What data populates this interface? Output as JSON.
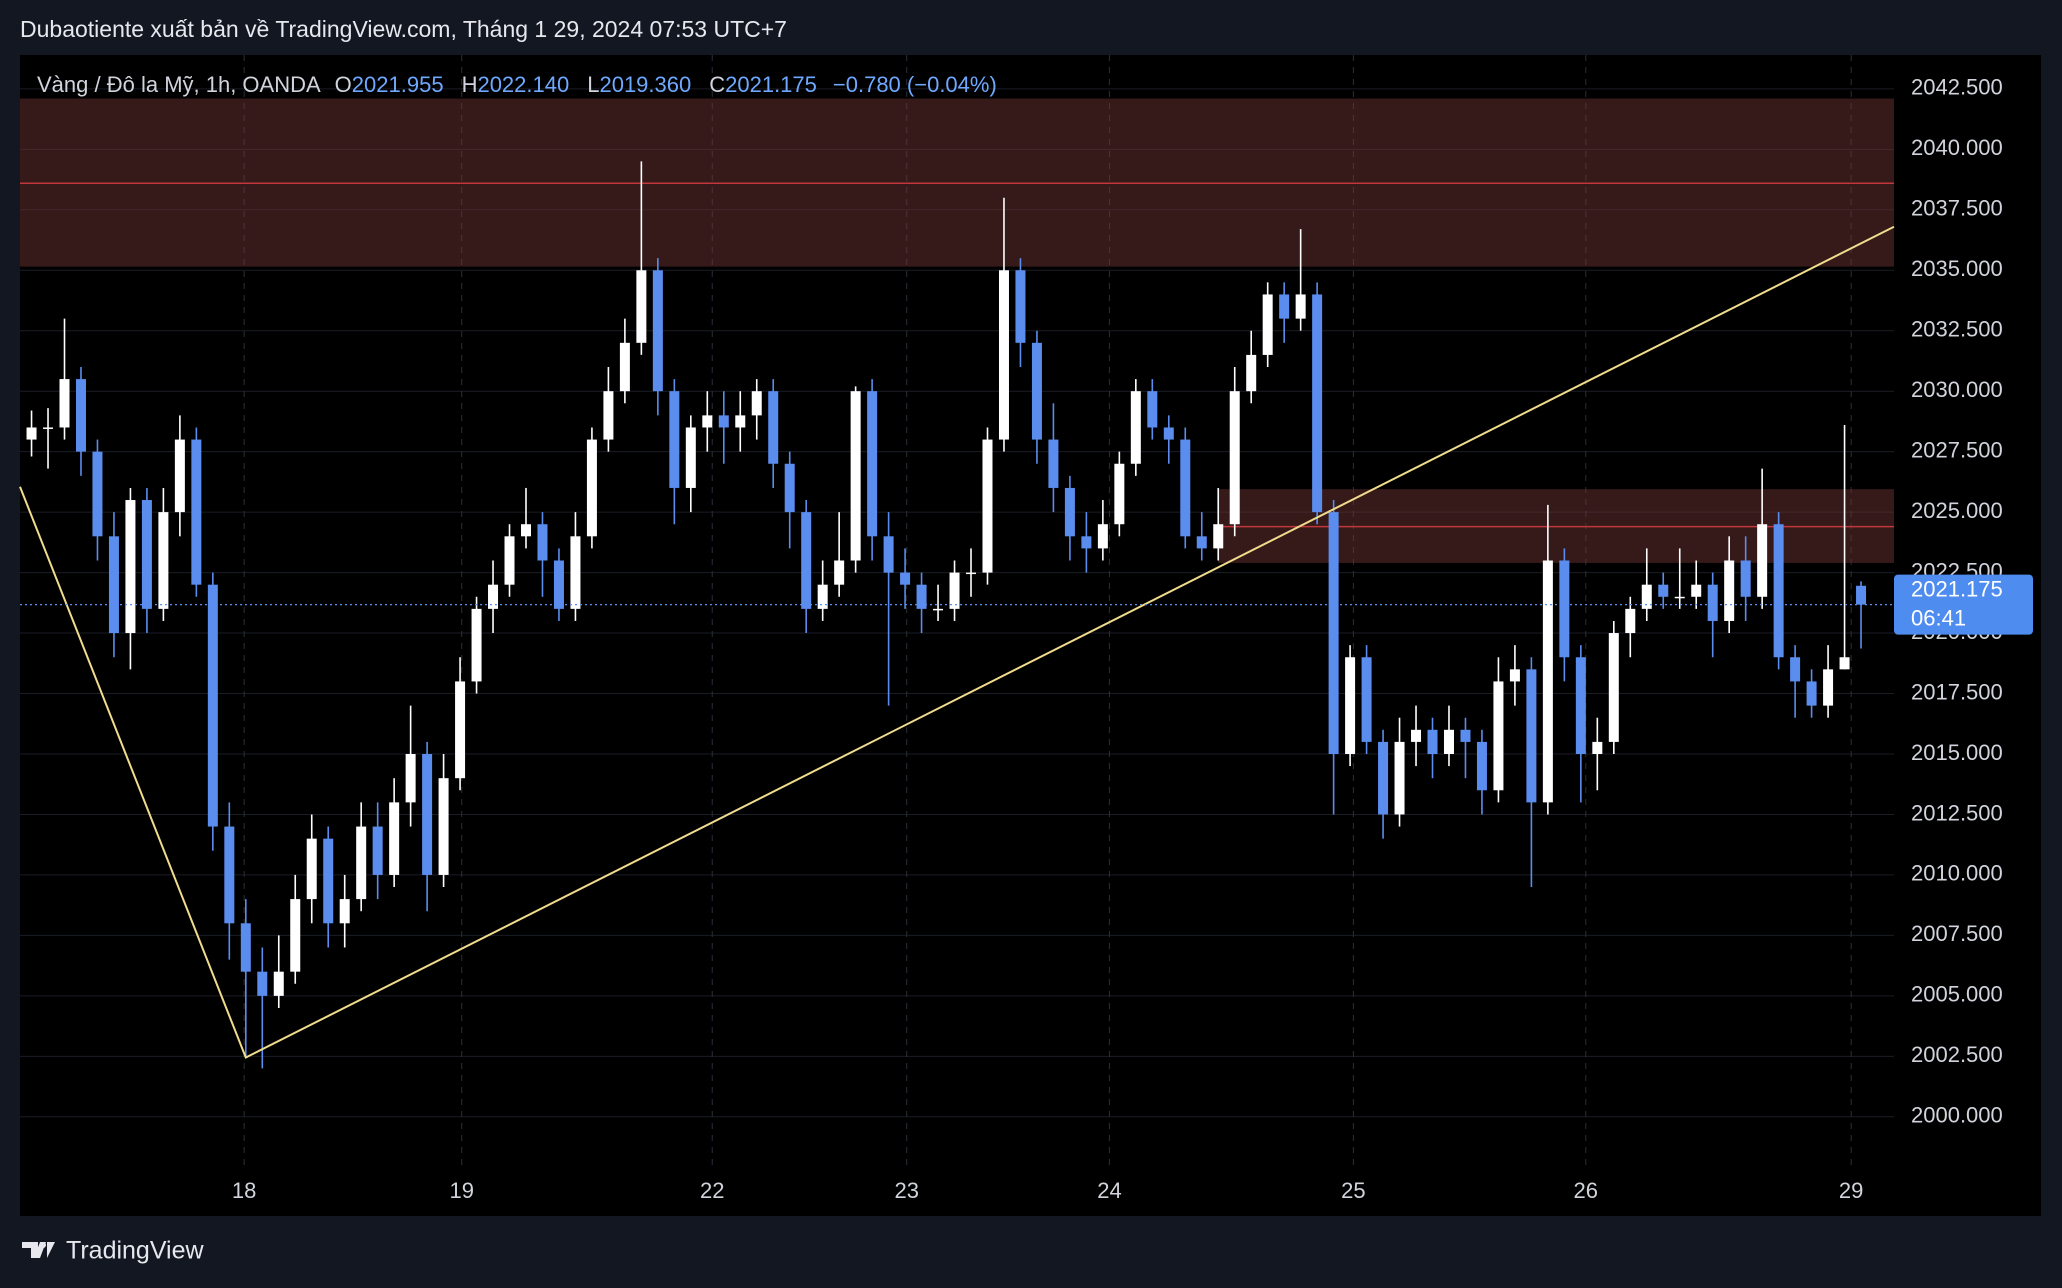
{
  "header": {
    "title": "Dubaotiente xuất bản về TradingView.com, Tháng 1 29, 2024 07:53 UTC+7"
  },
  "footer": {
    "brand": "TradingView"
  },
  "chart_data": {
    "type": "candlestick",
    "symbol": "Vàng / Đô la Mỹ, 1h, OANDA",
    "ohlc_text": [
      {
        "key": "O",
        "value": "2021.955"
      },
      {
        "key": "H",
        "value": "2022.140"
      },
      {
        "key": "L",
        "value": "2019.360"
      },
      {
        "key": "C",
        "value": "2021.175"
      }
    ],
    "change": "−0.780 (−0.04%)",
    "up_color": "#ffffff",
    "down_color": "#5b8def",
    "open": [
      2028,
      2028.5,
      2028.5,
      2030.5,
      2027.5,
      2024,
      2020,
      2025.5,
      2021,
      2025,
      2028,
      2022,
      2012,
      2008,
      2006,
      2005,
      2006,
      2009,
      2011.5,
      2008,
      2009,
      2012,
      2010,
      2013,
      2015,
      2010,
      2014,
      2018,
      2021,
      2022,
      2024,
      2024.5,
      2023,
      2021,
      2024,
      2028,
      2030,
      2032,
      2035,
      2030,
      2026,
      2028.5,
      2029,
      2028.5,
      2029,
      2030,
      2027,
      2025,
      2021,
      2022,
      2023,
      2030,
      2024,
      2022.5,
      2022,
      2021,
      2021,
      2022.5,
      2022.5,
      2028,
      2035,
      2032,
      2028,
      2026,
      2024,
      2023.5,
      2024.5,
      2027,
      2030,
      2028.5,
      2028,
      2024,
      2023.5,
      2024.5,
      2030,
      2031.5,
      2034,
      2033,
      2034,
      2025,
      2015,
      2019,
      2015.5,
      2012.5,
      2015.5,
      2016,
      2015,
      2016,
      2015.5,
      2013.5,
      2018,
      2018.5,
      2013,
      2023,
      2019,
      2015,
      2015.5,
      2020,
      2021,
      2022,
      2021.5,
      2021.5,
      2022,
      2020.5,
      2023,
      2021.5,
      2024.5,
      2019,
      2018,
      2017,
      2018.5,
      2021.955
    ],
    "high": [
      2029.2,
      2029.3,
      2033,
      2031,
      2028,
      2025,
      2026,
      2026,
      2026,
      2029,
      2028.5,
      2022.5,
      2013,
      2009,
      2007,
      2007.5,
      2010,
      2012.5,
      2012,
      2010,
      2013,
      2013,
      2014,
      2017,
      2015.5,
      2015,
      2019,
      2021.5,
      2023,
      2024.5,
      2026,
      2025,
      2023.5,
      2025,
      2028.5,
      2031,
      2033,
      2039.5,
      2035.5,
      2030.5,
      2029,
      2030,
      2030,
      2030,
      2030.5,
      2030.5,
      2027.5,
      2025.5,
      2023,
      2025,
      2030.2,
      2030.5,
      2025,
      2023.5,
      2022.5,
      2022,
      2023,
      2023.5,
      2028.5,
      2038,
      2035.5,
      2032.5,
      2029.5,
      2026.5,
      2025,
      2025.5,
      2027.5,
      2030.5,
      2030.5,
      2029,
      2028.5,
      2025,
      2026,
      2031,
      2032.5,
      2034.5,
      2034.5,
      2036.7,
      2034.5,
      2025.5,
      2019.5,
      2019.5,
      2016,
      2016.5,
      2017,
      2016.5,
      2017,
      2016.5,
      2016,
      2019,
      2019.5,
      2019,
      2025.3,
      2023.5,
      2019.5,
      2016.5,
      2020.5,
      2021.5,
      2023.5,
      2022.5,
      2023.5,
      2023,
      2022.5,
      2024,
      2024,
      2026.8,
      2025,
      2019.5,
      2018.5,
      2019.5,
      2028.6,
      2022.14
    ],
    "low": [
      2027.3,
      2026.8,
      2028,
      2026.5,
      2023,
      2019,
      2018.5,
      2020,
      2020.5,
      2024,
      2021.5,
      2011,
      2006.5,
      2002.5,
      2002,
      2004.5,
      2005.5,
      2008,
      2007,
      2007,
      2008.5,
      2009,
      2009.5,
      2012,
      2008.5,
      2009.5,
      2013.5,
      2017.5,
      2020,
      2021.5,
      2023.5,
      2021.5,
      2020.5,
      2020.5,
      2023.5,
      2027.5,
      2029.5,
      2031.5,
      2029,
      2024.5,
      2025,
      2027.5,
      2027,
      2027.5,
      2028,
      2026,
      2023.5,
      2020,
      2020.5,
      2021.5,
      2022.5,
      2023,
      2017,
      2021,
      2020,
      2020.5,
      2020.5,
      2021.5,
      2022,
      2027.5,
      2031,
      2027,
      2025,
      2023,
      2022.5,
      2023,
      2024,
      2026.5,
      2028,
      2027,
      2023.5,
      2023,
      2023,
      2024,
      2029.5,
      2031,
      2032,
      2032.5,
      2024.5,
      2012.5,
      2014.5,
      2015,
      2011.5,
      2012,
      2014.5,
      2014,
      2014.5,
      2014,
      2012.5,
      2013,
      2017,
      2009.5,
      2012.5,
      2018,
      2013,
      2013.5,
      2015,
      2019,
      2020.5,
      2021,
      2021,
      2021,
      2019,
      2020,
      2020.5,
      2021,
      2018.5,
      2016.5,
      2016.5,
      2016.5,
      2018.5,
      2019.36
    ],
    "close": [
      2028.5,
      2028.5,
      2030.5,
      2027.5,
      2024,
      2020,
      2025.5,
      2021,
      2025,
      2028,
      2022,
      2012,
      2008,
      2006,
      2005,
      2006,
      2009,
      2011.5,
      2008,
      2009,
      2012,
      2010,
      2013,
      2015,
      2010,
      2014,
      2018,
      2021,
      2022,
      2024,
      2024.5,
      2023,
      2021,
      2024,
      2028,
      2030,
      2032,
      2035,
      2030,
      2026,
      2028.5,
      2029,
      2028.5,
      2029,
      2030,
      2027,
      2025,
      2021,
      2022,
      2023,
      2030,
      2024,
      2022.5,
      2022,
      2021,
      2021,
      2022.5,
      2022.5,
      2028,
      2035,
      2032,
      2028,
      2026,
      2024,
      2023.5,
      2024.5,
      2027,
      2030,
      2028.5,
      2028,
      2024,
      2023.5,
      2024.5,
      2030,
      2031.5,
      2034,
      2033,
      2034,
      2025,
      2015,
      2019,
      2015.5,
      2012.5,
      2015.5,
      2016,
      2015,
      2016,
      2015.5,
      2013.5,
      2018,
      2018.5,
      2013,
      2023,
      2019,
      2015,
      2015.5,
      2020,
      2021,
      2022,
      2021.5,
      2021.5,
      2022,
      2020.5,
      2023,
      2021.5,
      2024.5,
      2019,
      2018,
      2017,
      2018.5,
      2019,
      2021.175
    ],
    "xlim": [
      -0.7,
      113
    ],
    "xticks": [
      {
        "value": 12.9,
        "label": "18"
      },
      {
        "value": 26.1,
        "label": "19"
      },
      {
        "value": 41.3,
        "label": "22"
      },
      {
        "value": 53.1,
        "label": "23"
      },
      {
        "value": 65.4,
        "label": "24"
      },
      {
        "value": 80.2,
        "label": "25"
      },
      {
        "value": 94.3,
        "label": "26"
      },
      {
        "value": 110.4,
        "label": "29"
      }
    ],
    "ylim": [
      1997.8,
      2043.9
    ],
    "yticks": [
      {
        "value": 2000,
        "label": "2000.000"
      },
      {
        "value": 2002.5,
        "label": "2002.500"
      },
      {
        "value": 2005,
        "label": "2005.000"
      },
      {
        "value": 2007.5,
        "label": "2007.500"
      },
      {
        "value": 2010,
        "label": "2010.000"
      },
      {
        "value": 2012.5,
        "label": "2012.500"
      },
      {
        "value": 2015,
        "label": "2015.000"
      },
      {
        "value": 2017.5,
        "label": "2017.500"
      },
      {
        "value": 2020,
        "label": "2020.000"
      },
      {
        "value": 2022.5,
        "label": "2022.500"
      },
      {
        "value": 2025,
        "label": "2025.000"
      },
      {
        "value": 2027.5,
        "label": "2027.500"
      },
      {
        "value": 2030,
        "label": "2030.000"
      },
      {
        "value": 2032.5,
        "label": "2032.500"
      },
      {
        "value": 2035,
        "label": "2035.000"
      },
      {
        "value": 2037.5,
        "label": "2037.500"
      },
      {
        "value": 2040,
        "label": "2040.000"
      },
      {
        "value": 2042.5,
        "label": "2042.500"
      }
    ],
    "grid": true,
    "last_price": 2021.175,
    "countdown": "06:41",
    "zones": [
      {
        "from": 2035.15,
        "to": 2042.1,
        "line": 2038.6,
        "start": -0.7
      },
      {
        "from": 2022.9,
        "to": 2025.95,
        "line": 2024.4,
        "start": 72
      }
    ],
    "trendline": {
      "x": [
        -0.7,
        13,
        113
      ],
      "y": [
        2026.05,
        2002.45,
        2036.8
      ]
    }
  }
}
